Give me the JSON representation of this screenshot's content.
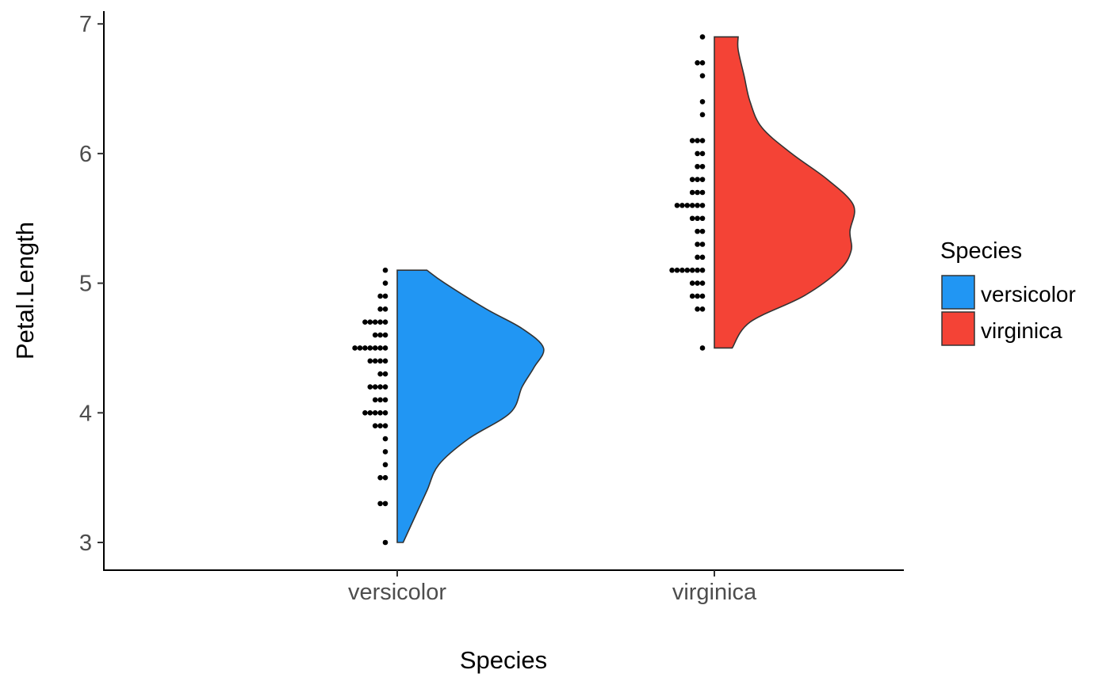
{
  "chart_data": {
    "type": "violin+dotplot",
    "xlabel": "Species",
    "ylabel": "Petal.Length",
    "categories": [
      "versicolor",
      "virginica"
    ],
    "ylim": [
      2.78,
      7.1
    ],
    "yticks": [
      3,
      4,
      5,
      6,
      7
    ],
    "grid": false,
    "legend": {
      "title": "Species",
      "placement": "right",
      "entries": [
        {
          "label": "versicolor",
          "color": "#2196F3"
        },
        {
          "label": "virginica",
          "color": "#F44336"
        }
      ]
    },
    "series": [
      {
        "name": "versicolor",
        "color": "#2196F3",
        "range": [
          3.0,
          5.1
        ],
        "density": [
          [
            3.0,
            0.05
          ],
          [
            3.2,
            0.15
          ],
          [
            3.4,
            0.25
          ],
          [
            3.6,
            0.35
          ],
          [
            3.8,
            0.6
          ],
          [
            4.0,
            0.95
          ],
          [
            4.2,
            1.05
          ],
          [
            4.35,
            1.15
          ],
          [
            4.5,
            1.23
          ],
          [
            4.65,
            1.05
          ],
          [
            4.8,
            0.75
          ],
          [
            5.0,
            0.4
          ],
          [
            5.1,
            0.25
          ]
        ],
        "points": [
          {
            "y": 3.0,
            "n": 1
          },
          {
            "y": 3.3,
            "n": 2
          },
          {
            "y": 3.5,
            "n": 2
          },
          {
            "y": 3.6,
            "n": 1
          },
          {
            "y": 3.7,
            "n": 1
          },
          {
            "y": 3.8,
            "n": 1
          },
          {
            "y": 3.9,
            "n": 3
          },
          {
            "y": 4.0,
            "n": 5
          },
          {
            "y": 4.1,
            "n": 3
          },
          {
            "y": 4.2,
            "n": 4
          },
          {
            "y": 4.3,
            "n": 2
          },
          {
            "y": 4.4,
            "n": 4
          },
          {
            "y": 4.5,
            "n": 7
          },
          {
            "y": 4.6,
            "n": 3
          },
          {
            "y": 4.7,
            "n": 5
          },
          {
            "y": 4.8,
            "n": 2
          },
          {
            "y": 4.9,
            "n": 2
          },
          {
            "y": 5.0,
            "n": 1
          },
          {
            "y": 5.1,
            "n": 1
          }
        ]
      },
      {
        "name": "virginica",
        "color": "#F44336",
        "range": [
          4.5,
          6.9
        ],
        "density": [
          [
            4.5,
            0.15
          ],
          [
            4.7,
            0.3
          ],
          [
            4.9,
            0.75
          ],
          [
            5.1,
            1.05
          ],
          [
            5.25,
            1.15
          ],
          [
            5.4,
            1.14
          ],
          [
            5.6,
            1.17
          ],
          [
            5.8,
            0.95
          ],
          [
            6.0,
            0.65
          ],
          [
            6.2,
            0.4
          ],
          [
            6.4,
            0.3
          ],
          [
            6.6,
            0.25
          ],
          [
            6.8,
            0.2
          ],
          [
            6.9,
            0.2
          ]
        ],
        "points": [
          {
            "y": 4.5,
            "n": 1
          },
          {
            "y": 4.8,
            "n": 2
          },
          {
            "y": 4.9,
            "n": 3
          },
          {
            "y": 5.0,
            "n": 3
          },
          {
            "y": 5.1,
            "n": 7
          },
          {
            "y": 5.2,
            "n": 2
          },
          {
            "y": 5.3,
            "n": 2
          },
          {
            "y": 5.4,
            "n": 2
          },
          {
            "y": 5.5,
            "n": 3
          },
          {
            "y": 5.6,
            "n": 6
          },
          {
            "y": 5.7,
            "n": 3
          },
          {
            "y": 5.8,
            "n": 3
          },
          {
            "y": 5.9,
            "n": 2
          },
          {
            "y": 6.0,
            "n": 2
          },
          {
            "y": 6.1,
            "n": 3
          },
          {
            "y": 6.3,
            "n": 1
          },
          {
            "y": 6.4,
            "n": 1
          },
          {
            "y": 6.6,
            "n": 1
          },
          {
            "y": 6.7,
            "n": 2
          },
          {
            "y": 6.9,
            "n": 1
          }
        ]
      }
    ]
  }
}
